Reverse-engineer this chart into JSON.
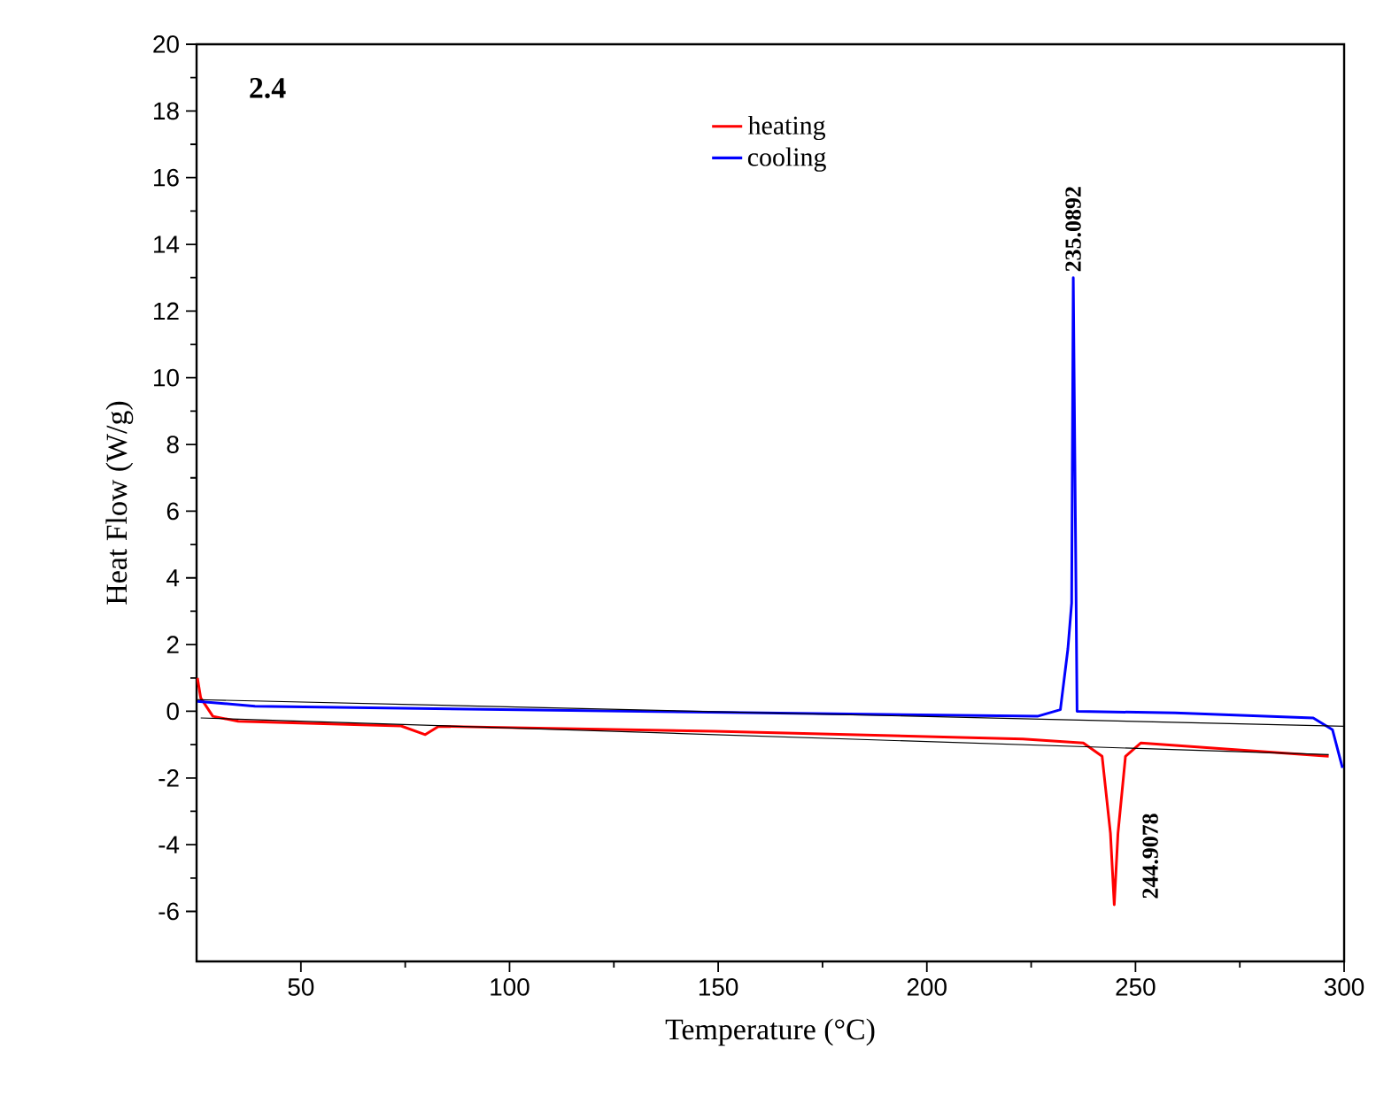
{
  "chart_data": {
    "type": "line",
    "xlabel": "Temperature (°C)",
    "ylabel": "Heat Flow (W/g)",
    "xlim": [
      25,
      300
    ],
    "xticks": [
      50,
      100,
      150,
      200,
      250,
      300
    ],
    "ylim": [
      -7.5,
      20
    ],
    "yticks": [
      -6,
      -4,
      -2,
      0,
      2,
      4,
      6,
      8,
      10,
      12,
      14,
      16,
      18,
      20
    ],
    "legend": "top",
    "grid": false,
    "series": [
      {
        "name": "heating",
        "color": "#ff0000",
        "x": [
          25.2,
          26,
          28.9,
          35,
          74,
          79.8,
          83,
          149,
          223,
          237.5,
          242,
          244,
          244.9078,
          245.8,
          247.6,
          251.3,
          296.3
        ],
        "values": [
          1.0,
          0.4,
          -0.15,
          -0.3,
          -0.44,
          -0.7,
          -0.45,
          -0.6,
          -0.83,
          -0.95,
          -1.35,
          -3.66,
          -5.8,
          -3.66,
          -1.35,
          -0.95,
          -1.35
        ]
      },
      {
        "name": "cooling",
        "color": "#0000ff",
        "x": [
          25.2,
          39,
          131,
          226.5,
          232,
          233.8,
          234.7,
          235.0892,
          236,
          259.5,
          292.6,
          297.2,
          299.6
        ],
        "values": [
          0.3,
          0.15,
          0.0,
          -0.15,
          0.05,
          1.87,
          3.25,
          13.0,
          0.0,
          -0.05,
          -0.2,
          -0.55,
          -1.7
        ]
      },
      {
        "color": "#000000",
        "x": [
          26,
          296.3
        ],
        "values": [
          -0.2,
          -1.3
        ]
      },
      {
        "color": "#000000",
        "x": [
          25.2,
          300
        ],
        "values": [
          0.35,
          -0.45
        ]
      }
    ],
    "annotations": [
      "2.4",
      {
        "text": "235.0892",
        "x": 235.0892,
        "y": 13.0
      },
      {
        "text": "244.9078",
        "x": 244.9078,
        "y": -5.8
      }
    ]
  }
}
